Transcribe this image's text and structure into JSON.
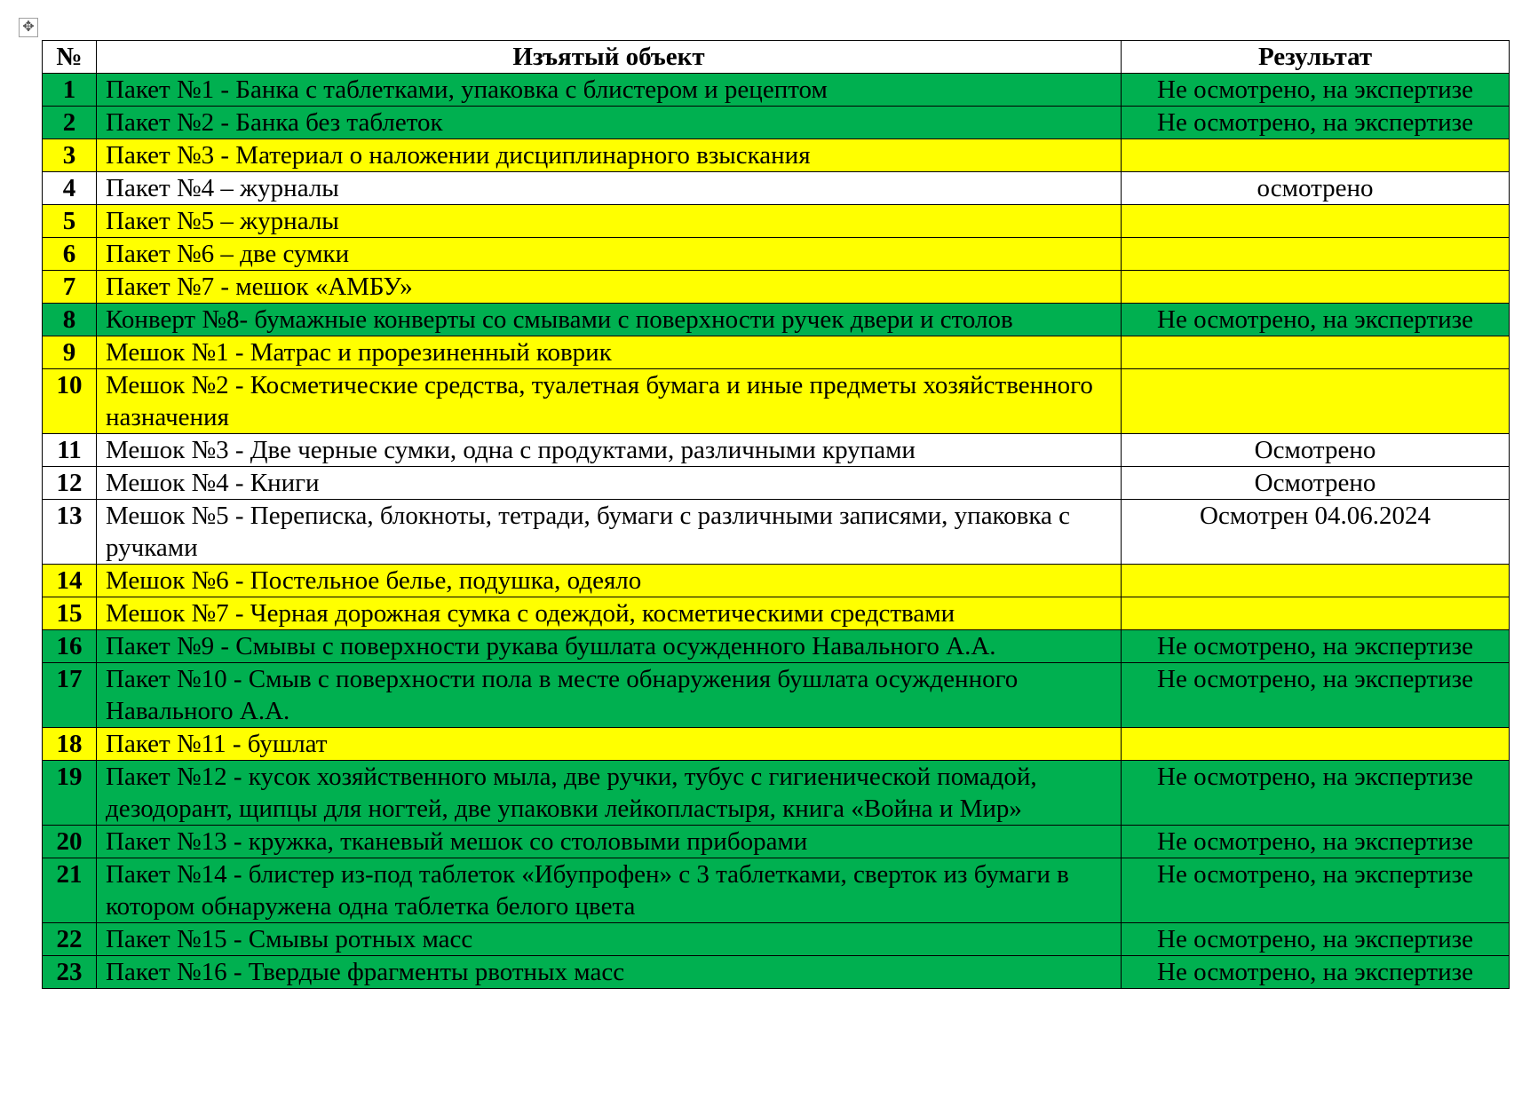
{
  "colors": {
    "green": "#00B050",
    "yellow": "#FFFF00",
    "white": "#FFFFFF"
  },
  "table": {
    "headers": [
      "№",
      "Изъятый объект",
      "Результат"
    ],
    "rows": [
      {
        "n": "1",
        "object": "Пакет №1 - Банка с таблетками, упаковка с блистером и рецептом",
        "result": "Не осмотрено, на экспертизе",
        "color": "green"
      },
      {
        "n": "2",
        "object": "Пакет №2 - Банка без таблеток",
        "result": "Не осмотрено, на экспертизе",
        "color": "green"
      },
      {
        "n": "3",
        "object": "Пакет №3 - Материал о наложении дисциплинарного взыскания",
        "result": "",
        "color": "yellow"
      },
      {
        "n": "4",
        "object": "Пакет №4 – журналы",
        "result": "осмотрено",
        "color": "white"
      },
      {
        "n": "5",
        "object": "Пакет №5 – журналы",
        "result": "",
        "color": "yellow"
      },
      {
        "n": "6",
        "object": "Пакет №6 – две сумки",
        "result": "",
        "color": "yellow"
      },
      {
        "n": "7",
        "object": "Пакет №7 - мешок «АМБУ»",
        "result": "",
        "color": "yellow"
      },
      {
        "n": "8",
        "object": "Конверт №8- бумажные конверты со смывами с поверхности ручек двери и столов",
        "result": "Не осмотрено, на экспертизе",
        "color": "green"
      },
      {
        "n": "9",
        "object": "Мешок №1 - Матрас и прорезиненный коврик",
        "result": "",
        "color": "yellow"
      },
      {
        "n": "10",
        "object": "Мешок №2 - Косметические средства, туалетная бумага и иные предметы хозяйственного назначения",
        "result": "",
        "color": "yellow"
      },
      {
        "n": "11",
        "object": "Мешок №3 - Две черные сумки, одна с продуктами, различными крупами",
        "result": "Осмотрено",
        "color": "white"
      },
      {
        "n": "12",
        "object": "Мешок №4 - Книги",
        "result": "Осмотрено",
        "color": "white"
      },
      {
        "n": "13",
        "object": "Мешок №5 - Переписка, блокноты, тетради, бумаги с различными записями, упаковка с ручками",
        "result": "Осмотрен 04.06.2024",
        "color": "white"
      },
      {
        "n": "14",
        "object": "Мешок №6 - Постельное белье, подушка, одеяло",
        "result": "",
        "color": "yellow"
      },
      {
        "n": "15",
        "object": "Мешок №7 - Черная дорожная сумка с одеждой, косметическими средствами",
        "result": "",
        "color": "yellow"
      },
      {
        "n": "16",
        "object": "Пакет №9 - Смывы с поверхности рукава бушлата осужденного Навального А.А.",
        "result": "Не осмотрено, на экспертизе",
        "color": "green"
      },
      {
        "n": "17",
        "object": "Пакет №10 - Смыв с поверхности пола в месте обнаружения бушлата осужденного Навального А.А.",
        "result": "Не осмотрено, на экспертизе",
        "color": "green"
      },
      {
        "n": "18",
        "object": "Пакет №11 - бушлат",
        "result": "",
        "color": "yellow"
      },
      {
        "n": "19",
        "object": "Пакет №12 - кусок хозяйственного мыла, две ручки, тубус с гигиенической помадой, дезодорант, щипцы для ногтей, две упаковки лейкопластыря, книга «Война и Мир»",
        "result": "Не осмотрено, на экспертизе",
        "color": "green"
      },
      {
        "n": "20",
        "object": "Пакет №13 - кружка, тканевый мешок со столовыми приборами",
        "result": "Не осмотрено, на экспертизе",
        "color": "green"
      },
      {
        "n": "21",
        "object": "Пакет №14 - блистер из-под таблеток «Ибупрофен» с 3 таблетками, сверток из бумаги в котором обнаружена одна таблетка белого цвета",
        "result": "Не осмотрено, на экспертизе",
        "color": "green"
      },
      {
        "n": "22",
        "object": "Пакет №15 - Смывы ротных масс",
        "result": "Не осмотрено, на экспертизе",
        "color": "green"
      },
      {
        "n": "23",
        "object": "Пакет №16 - Твердые фрагменты рвотных масс",
        "result": "Не осмотрено, на экспертизе",
        "color": "green"
      }
    ]
  }
}
